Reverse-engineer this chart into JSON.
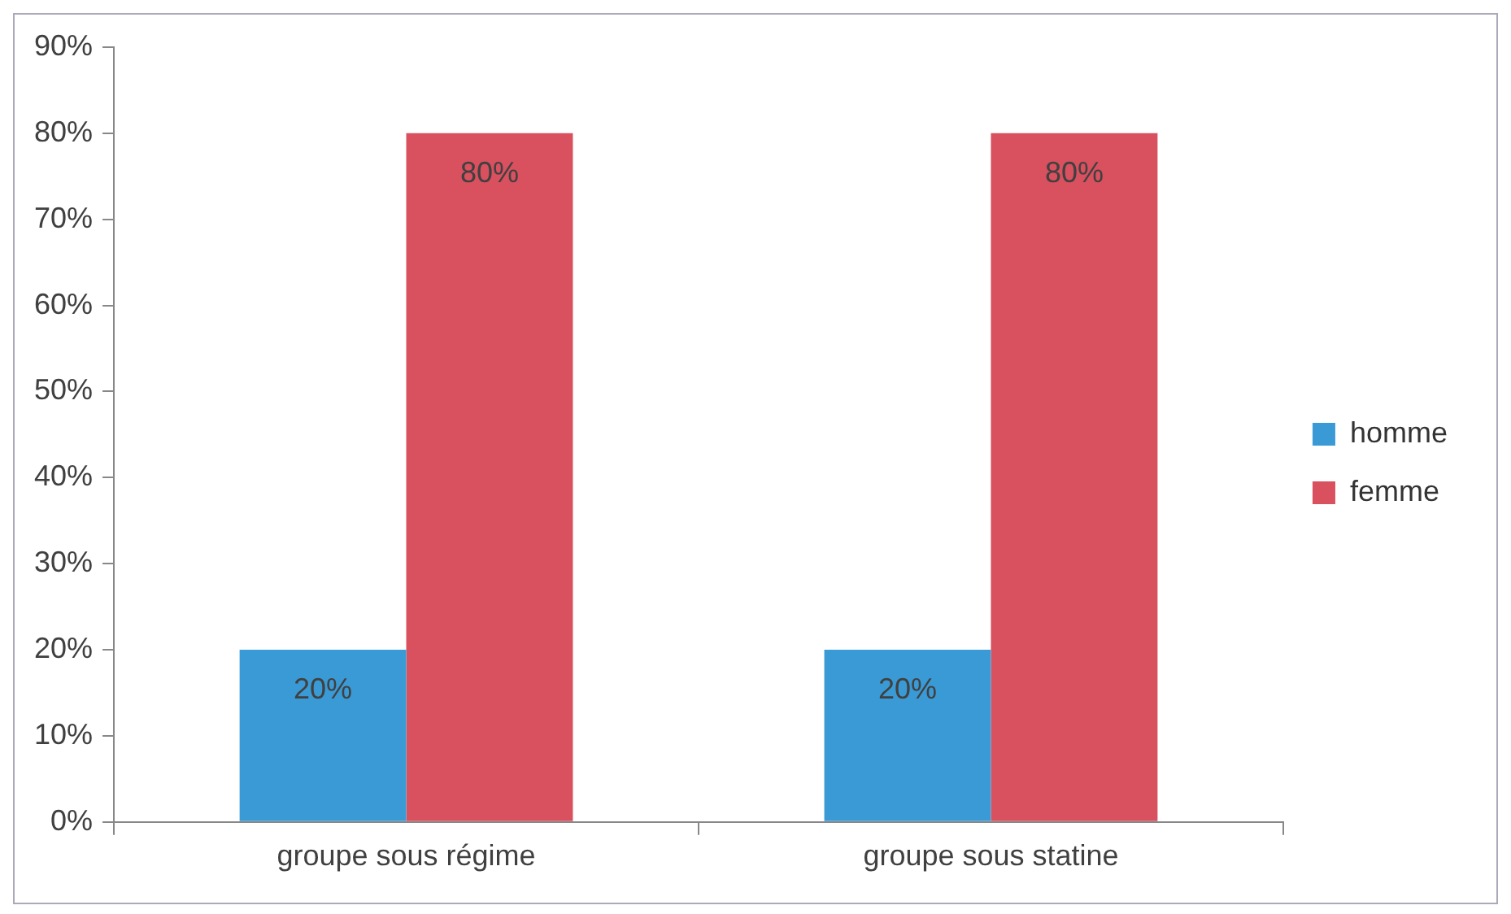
{
  "chart_data": {
    "type": "bar",
    "categories": [
      "groupe sous régime",
      "groupe sous statine"
    ],
    "series": [
      {
        "name": "homme",
        "color": "#3a9ad6",
        "values": [
          20,
          20
        ],
        "value_labels": [
          "20%",
          "20%"
        ]
      },
      {
        "name": "femme",
        "color": "#d9505f",
        "values": [
          80,
          80
        ],
        "value_labels": [
          "80%",
          "80%"
        ]
      }
    ],
    "ylim": [
      0,
      90
    ],
    "yticks": [
      {
        "value": 0,
        "label": "0%"
      },
      {
        "value": 10,
        "label": "10%"
      },
      {
        "value": 20,
        "label": "20%"
      },
      {
        "value": 30,
        "label": "30%"
      },
      {
        "value": 40,
        "label": "40%"
      },
      {
        "value": 50,
        "label": "50%"
      },
      {
        "value": 60,
        "label": "60%"
      },
      {
        "value": 70,
        "label": "70%"
      },
      {
        "value": 80,
        "label": "80%"
      },
      {
        "value": 90,
        "label": "90%"
      }
    ],
    "grid": false,
    "legend": "right"
  }
}
